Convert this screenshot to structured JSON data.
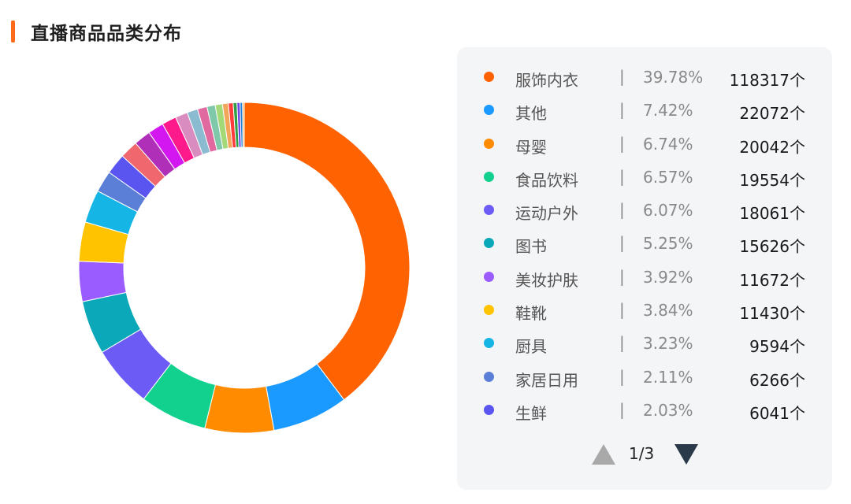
{
  "title": "直播商品品类分布",
  "colors": {
    "accent": "#ff6a1a"
  },
  "legend": {
    "separator": "|",
    "items": [
      {
        "name": "服饰内衣",
        "percent": "39.78%",
        "count": "118317个",
        "color": "#ff6200"
      },
      {
        "name": "其他",
        "percent": "7.42%",
        "count": "22072个",
        "color": "#1a99ff"
      },
      {
        "name": "母婴",
        "percent": "6.74%",
        "count": "20042个",
        "color": "#ff8c00"
      },
      {
        "name": "食品饮料",
        "percent": "6.57%",
        "count": "19554个",
        "color": "#12d18e"
      },
      {
        "name": "运动户外",
        "percent": "6.07%",
        "count": "18061个",
        "color": "#6c5cf5"
      },
      {
        "name": "图书",
        "percent": "5.25%",
        "count": "15626个",
        "color": "#0aa8b8"
      },
      {
        "name": "美妆护肤",
        "percent": "3.92%",
        "count": "11672个",
        "color": "#9b5cff"
      },
      {
        "name": "鞋靴",
        "percent": "3.84%",
        "count": "11430个",
        "color": "#ffc300"
      },
      {
        "name": "厨具",
        "percent": "3.23%",
        "count": "9594个",
        "color": "#15b5e6"
      },
      {
        "name": "家居日用",
        "percent": "2.11%",
        "count": "6266个",
        "color": "#5b7fd6"
      },
      {
        "name": "生鲜",
        "percent": "2.03%",
        "count": "6041个",
        "color": "#5a55f0"
      }
    ]
  },
  "pager": {
    "label": "1/3"
  },
  "chart_data": {
    "type": "pie",
    "values": [
      118317,
      22072,
      20042,
      19554,
      18061,
      15626,
      11672,
      11430,
      9594,
      6266,
      6041,
      5300,
      4900,
      4600,
      4200,
      3600,
      3100,
      2800,
      2400,
      2100,
      1700,
      1400,
      1100,
      900,
      700,
      500
    ],
    "colors": [
      "#ff6200",
      "#1a99ff",
      "#ff8c00",
      "#12d18e",
      "#6c5cf5",
      "#0aa8b8",
      "#9b5cff",
      "#ffc300",
      "#15b5e6",
      "#5b7fd6",
      "#5a55f0",
      "#f0676d",
      "#b02fb8",
      "#d317f0",
      "#ff1a8c",
      "#d98cc0",
      "#8abbd1",
      "#e06aa0",
      "#7fc8a9",
      "#a3d977",
      "#f2a65a",
      "#ff3b3b",
      "#2f9e44",
      "#7048e8",
      "#1c7ed6",
      "#ffa94d"
    ],
    "legend_position": "right"
  }
}
